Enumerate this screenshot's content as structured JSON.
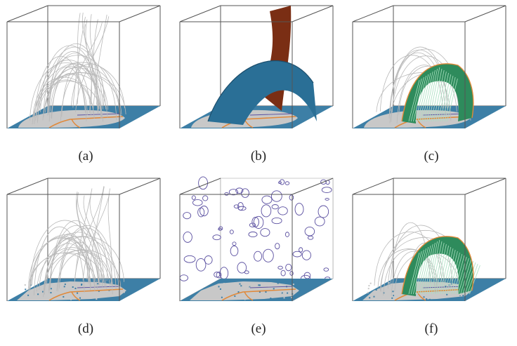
{
  "panels": [
    {
      "id": "a",
      "label": "(a)",
      "content": "field-lines"
    },
    {
      "id": "b",
      "label": "(b)",
      "content": "surfaces"
    },
    {
      "id": "c",
      "label": "(c)",
      "content": "green-arch"
    },
    {
      "id": "d",
      "label": "(d)",
      "content": "field-lines-noisy"
    },
    {
      "id": "e",
      "label": "(e)",
      "content": "contour-walls"
    },
    {
      "id": "f",
      "label": "(f)",
      "content": "green-arch-noisy"
    }
  ],
  "colors": {
    "floor": "#3d7fa6",
    "footprint": "#c8c8c8",
    "polarity_line": "#e0893a",
    "field_line": "#b9b9b9",
    "surface_blue": "#2a6f96",
    "surface_brown": "#7a2e14",
    "surface_green": "#2e8b5c",
    "contour": "#5a4fa0",
    "box_edge": "#555555"
  }
}
